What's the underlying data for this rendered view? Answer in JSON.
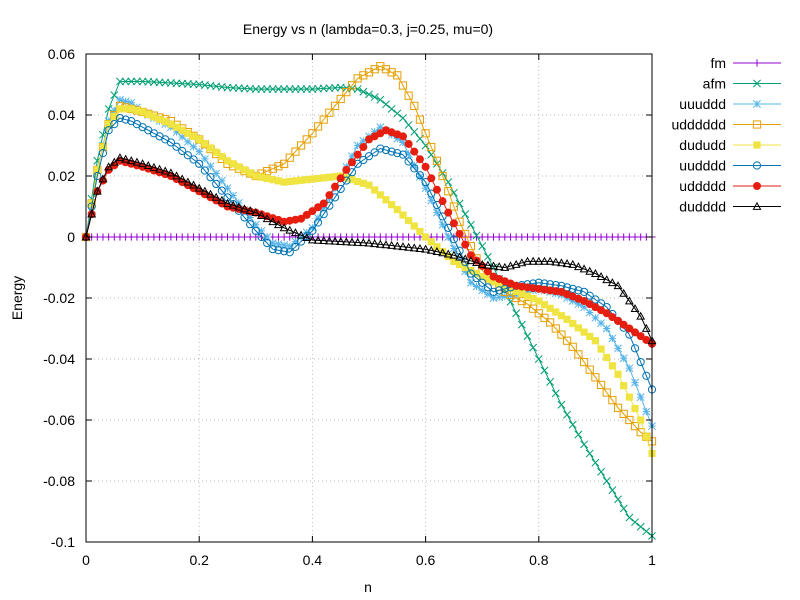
{
  "chart_data": {
    "type": "line",
    "title": "Energy vs n (lambda=0.3, j=0.25, mu=0)",
    "xlabel": "n",
    "ylabel": "Energy",
    "xlim": [
      0,
      1
    ],
    "ylim": [
      -0.1,
      0.06
    ],
    "x_ticks": [
      0,
      0.2,
      0.4,
      0.6,
      0.8,
      1
    ],
    "x_tick_labels": [
      "0",
      "0.2",
      "0.4",
      "0.6",
      "0.8",
      "1"
    ],
    "y_ticks": [
      0.06,
      0.04,
      0.02,
      0,
      -0.02,
      -0.04,
      -0.06,
      -0.08,
      -0.1
    ],
    "y_tick_labels": [
      "0.06",
      "0.04",
      "0.02",
      "0",
      "-0.02",
      "-0.04",
      "-0.06",
      "-0.08",
      "-0.1"
    ],
    "grid": true,
    "legend_position": "outside-right",
    "series": [
      {
        "name": "fm",
        "color": "#9400d3",
        "marker": "plus",
        "x": [
          0,
          0.2,
          0.4,
          0.6,
          0.8,
          1
        ],
        "y": [
          0,
          0,
          0,
          0,
          0,
          0
        ]
      },
      {
        "name": "afm",
        "color": "#009e73",
        "marker": "cross",
        "x": [
          0,
          0.02,
          0.04,
          0.06,
          0.08,
          0.1,
          0.15,
          0.2,
          0.25,
          0.3,
          0.35,
          0.4,
          0.45,
          0.48,
          0.52,
          0.56,
          0.6,
          0.64,
          0.68,
          0.72,
          0.76,
          0.8,
          0.84,
          0.88,
          0.92,
          0.96,
          1
        ],
        "y": [
          0,
          0.025,
          0.042,
          0.051,
          0.051,
          0.051,
          0.0505,
          0.05,
          0.049,
          0.0485,
          0.0485,
          0.0485,
          0.049,
          0.0485,
          0.045,
          0.039,
          0.03,
          0.018,
          0.004,
          -0.01,
          -0.025,
          -0.04,
          -0.055,
          -0.068,
          -0.08,
          -0.092,
          -0.098
        ]
      },
      {
        "name": "uuuddd",
        "color": "#56b4e9",
        "marker": "star",
        "x": [
          0,
          0.02,
          0.04,
          0.06,
          0.08,
          0.1,
          0.15,
          0.2,
          0.25,
          0.3,
          0.33,
          0.36,
          0.4,
          0.44,
          0.48,
          0.52,
          0.56,
          0.6,
          0.64,
          0.68,
          0.72,
          0.76,
          0.8,
          0.84,
          0.88,
          0.92,
          0.96,
          1
        ],
        "y": [
          0,
          0.022,
          0.038,
          0.045,
          0.044,
          0.041,
          0.036,
          0.028,
          0.016,
          0.004,
          -0.002,
          -0.003,
          0.003,
          0.016,
          0.03,
          0.036,
          0.031,
          0.016,
          0,
          -0.015,
          -0.02,
          -0.019,
          -0.017,
          -0.019,
          -0.023,
          -0.03,
          -0.043,
          -0.062
        ]
      },
      {
        "name": "udddddd",
        "color": "#e69f00",
        "marker": "square-open",
        "x": [
          0,
          0.02,
          0.04,
          0.06,
          0.08,
          0.1,
          0.15,
          0.2,
          0.25,
          0.3,
          0.35,
          0.4,
          0.44,
          0.48,
          0.52,
          0.55,
          0.58,
          0.62,
          0.66,
          0.7,
          0.74,
          0.78,
          0.82,
          0.86,
          0.9,
          0.94,
          0.98,
          1
        ],
        "y": [
          0,
          0.022,
          0.037,
          0.043,
          0.042,
          0.041,
          0.038,
          0.032,
          0.024,
          0.02,
          0.024,
          0.034,
          0.043,
          0.052,
          0.056,
          0.053,
          0.043,
          0.025,
          0.005,
          -0.011,
          -0.018,
          -0.022,
          -0.028,
          -0.036,
          -0.046,
          -0.056,
          -0.064,
          -0.067
        ]
      },
      {
        "name": "dududd",
        "color": "#f0e442",
        "marker": "square-filled",
        "x": [
          0,
          0.02,
          0.04,
          0.06,
          0.08,
          0.1,
          0.15,
          0.2,
          0.25,
          0.3,
          0.35,
          0.4,
          0.45,
          0.5,
          0.55,
          0.6,
          0.65,
          0.7,
          0.75,
          0.8,
          0.85,
          0.9,
          0.94,
          0.98,
          1
        ],
        "y": [
          0,
          0.022,
          0.037,
          0.042,
          0.042,
          0.041,
          0.037,
          0.032,
          0.025,
          0.02,
          0.018,
          0.019,
          0.02,
          0.017,
          0.009,
          0,
          -0.008,
          -0.013,
          -0.017,
          -0.021,
          -0.027,
          -0.034,
          -0.045,
          -0.06,
          -0.071
        ]
      },
      {
        "name": "uudddd",
        "color": "#0072b2",
        "marker": "circle-open",
        "x": [
          0,
          0.02,
          0.04,
          0.06,
          0.08,
          0.1,
          0.15,
          0.2,
          0.25,
          0.3,
          0.33,
          0.36,
          0.4,
          0.44,
          0.48,
          0.52,
          0.56,
          0.6,
          0.64,
          0.68,
          0.72,
          0.76,
          0.8,
          0.84,
          0.88,
          0.92,
          0.96,
          1
        ],
        "y": [
          0,
          0.02,
          0.035,
          0.039,
          0.038,
          0.036,
          0.031,
          0.024,
          0.013,
          0.002,
          -0.004,
          -0.005,
          0.002,
          0.013,
          0.024,
          0.029,
          0.027,
          0.018,
          0.003,
          -0.012,
          -0.018,
          -0.016,
          -0.015,
          -0.016,
          -0.018,
          -0.023,
          -0.032,
          -0.05
        ]
      },
      {
        "name": "uddddd",
        "color": "#e51e10",
        "marker": "circle-filled",
        "x": [
          0,
          0.02,
          0.04,
          0.06,
          0.08,
          0.1,
          0.15,
          0.2,
          0.25,
          0.3,
          0.35,
          0.38,
          0.42,
          0.46,
          0.5,
          0.53,
          0.56,
          0.6,
          0.64,
          0.68,
          0.72,
          0.76,
          0.8,
          0.84,
          0.88,
          0.92,
          0.96,
          1
        ],
        "y": [
          0,
          0.015,
          0.022,
          0.025,
          0.024,
          0.023,
          0.02,
          0.015,
          0.01,
          0.008,
          0.005,
          0.006,
          0.011,
          0.022,
          0.032,
          0.035,
          0.033,
          0.023,
          0.008,
          -0.006,
          -0.013,
          -0.016,
          -0.017,
          -0.018,
          -0.021,
          -0.025,
          -0.03,
          -0.035
        ]
      },
      {
        "name": "dudddd",
        "color": "#000000",
        "marker": "triangle-open",
        "x": [
          0,
          0.02,
          0.04,
          0.06,
          0.08,
          0.1,
          0.15,
          0.2,
          0.25,
          0.3,
          0.35,
          0.4,
          0.45,
          0.5,
          0.55,
          0.6,
          0.65,
          0.7,
          0.74,
          0.78,
          0.82,
          0.86,
          0.9,
          0.94,
          0.98,
          1
        ],
        "y": [
          0,
          0.015,
          0.023,
          0.026,
          0.025,
          0.024,
          0.021,
          0.016,
          0.011,
          0.008,
          0.003,
          -0.001,
          -0.0015,
          -0.002,
          -0.003,
          -0.004,
          -0.006,
          -0.009,
          -0.01,
          -0.008,
          -0.008,
          -0.009,
          -0.012,
          -0.016,
          -0.026,
          -0.034
        ]
      }
    ]
  }
}
